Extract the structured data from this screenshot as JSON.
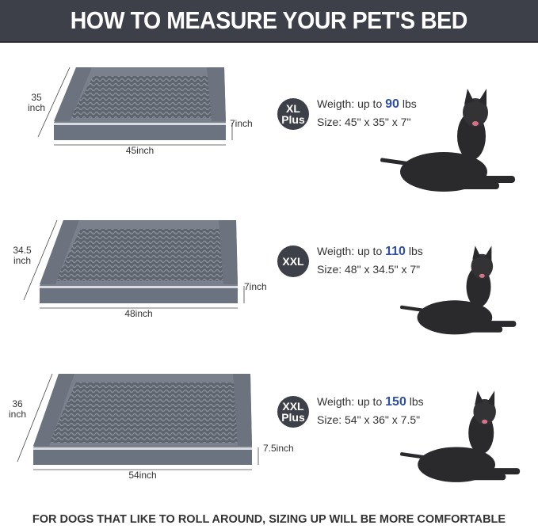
{
  "header": {
    "title": "HOW TO MEASURE YOUR PET'S BED"
  },
  "sizes": [
    {
      "badge": [
        "XL",
        "Plus"
      ],
      "weight_prefix": "Weigth: up to",
      "weight_value": "90",
      "weight_unit": "lbs",
      "size": "Size: 45\" x 35\" x 7\"",
      "depth_label": "35 inch",
      "length_label": "45inch",
      "height_label": "7inch"
    },
    {
      "badge": [
        "XXL"
      ],
      "weight_prefix": "Weigth: up to",
      "weight_value": "110",
      "weight_unit": "lbs",
      "size": "Size: 48\" x 34.5\" x 7\"",
      "depth_label": "34.5 inch",
      "length_label": "48inch",
      "height_label": "7inch"
    },
    {
      "badge": [
        "XXL",
        "Plus"
      ],
      "weight_prefix": "Weigth: up to",
      "weight_value": "150",
      "weight_unit": "lbs",
      "size": "Size: 54\" x 36\" x 7.5\"",
      "depth_label": "36 inch",
      "length_label": "54inch",
      "height_label": "7.5inch"
    }
  ],
  "footer": {
    "text": "FOR DOGS THAT LIKE TO ROLL AROUND, SIZING UP WILL BE MORE COMFORTABLE"
  },
  "colors": {
    "header_bg": "#3e4049",
    "accent_blue": "#2e4fa3",
    "bed_gray": "#6b7380"
  }
}
